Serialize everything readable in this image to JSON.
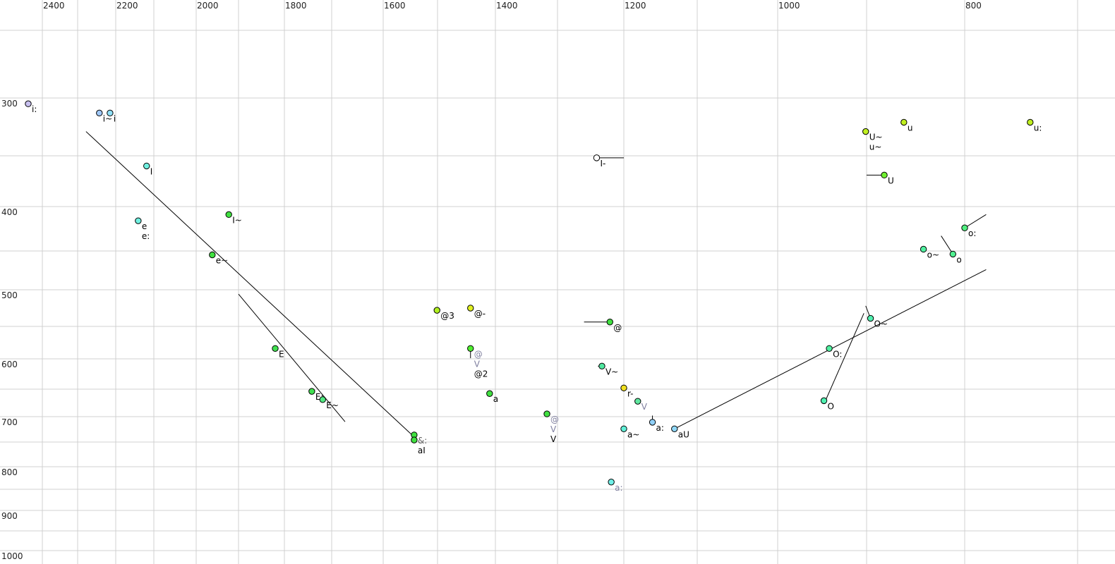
{
  "chart_data": {
    "type": "scatter",
    "title": "",
    "xlabel": "",
    "ylabel": "",
    "x_axis": {
      "reversed": true,
      "nonlinear": true,
      "labeled_ticks": [
        2400,
        2200,
        2000,
        1800,
        1600,
        1400,
        1200,
        1000,
        800
      ],
      "grid": [
        2400,
        2300,
        2200,
        2100,
        2000,
        1900,
        1800,
        1700,
        1600,
        1500,
        1400,
        1300,
        1200,
        1100,
        1000,
        900,
        800,
        700
      ],
      "position": "top"
    },
    "y_axis": {
      "reversed": true,
      "nonlinear": true,
      "labeled_ticks": [
        300,
        400,
        500,
        600,
        700,
        800,
        900,
        1000
      ],
      "grid": [
        250,
        300,
        350,
        400,
        450,
        500,
        550,
        600,
        650,
        700,
        750,
        800,
        850,
        900,
        950,
        1000
      ],
      "position": "left"
    },
    "grid": true,
    "points": [
      {
        "f2": 2440,
        "f1": 305,
        "color": "#c8c0f0",
        "labels": [
          {
            "text": "i:",
            "color": "#000000"
          }
        ]
      },
      {
        "f2": 2243,
        "f1": 313,
        "color": "#a0c8f8",
        "labels": [
          {
            "text": "i~",
            "color": "#000000"
          }
        ]
      },
      {
        "f2": 2215,
        "f1": 313,
        "color": "#90e0f8",
        "labels": [
          {
            "text": "i",
            "color": "#000000"
          }
        ]
      },
      {
        "f2": 2119,
        "f1": 360,
        "color": "#70f0e0",
        "labels": [
          {
            "text": "I",
            "color": "#000000"
          }
        ]
      },
      {
        "f2": 2141,
        "f1": 416,
        "color": "#70f0e0",
        "labels": [
          {
            "text": "e",
            "color": "#000000"
          },
          {
            "text": "e:",
            "color": "#000000"
          }
        ]
      },
      {
        "f2": 1923,
        "f1": 409,
        "color": "#40e040",
        "labels": [
          {
            "text": "I~",
            "color": "#000000"
          }
        ]
      },
      {
        "f2": 1962,
        "f1": 455,
        "color": "#40e040",
        "labels": [
          {
            "text": "e~",
            "color": "#000000"
          }
        ]
      },
      {
        "f2": 1820,
        "f1": 584,
        "color": "#40e050",
        "labels": [
          {
            "text": "E",
            "color": "#000000"
          }
        ]
      },
      {
        "f2": 1742,
        "f1": 654,
        "color": "#40e050",
        "labels": [
          {
            "text": "E:",
            "color": "#000000"
          }
        ]
      },
      {
        "f2": 1719,
        "f1": 669,
        "color": "#50e880",
        "labels": [
          {
            "text": "E~",
            "color": "#000000"
          }
        ]
      },
      {
        "f2": 1543,
        "f1": 736,
        "color": "#40e040",
        "labels": [
          {
            "text": "&:",
            "color": "#606060"
          }
        ]
      },
      {
        "f2": 1543,
        "f1": 746,
        "color": "#40e040",
        "labels": [
          {
            "text": "aI",
            "color": "#000000"
          }
        ]
      },
      {
        "f2": 1501,
        "f1": 528,
        "color": "#b0f020",
        "labels": [
          {
            "text": "@3",
            "color": "#000000"
          }
        ]
      },
      {
        "f2": 1443,
        "f1": 525,
        "color": "#e0f020",
        "labels": [
          {
            "text": "@-",
            "color": "#000000"
          }
        ]
      },
      {
        "f2": 1443,
        "f1": 584,
        "color": "#50f030",
        "labels": [
          {
            "text": "@",
            "color": "#8080a0"
          },
          {
            "text": "V",
            "color": "#8080a0"
          },
          {
            "text": "@2",
            "color": "#000000"
          }
        ]
      },
      {
        "f2": 1410,
        "f1": 658,
        "color": "#40e040",
        "labels": [
          {
            "text": "a",
            "color": "#000000"
          }
        ]
      },
      {
        "f2": 1317,
        "f1": 695,
        "color": "#40e040",
        "labels": [
          {
            "text": "@",
            "color": "#8080a0"
          },
          {
            "text": "V",
            "color": "#8080a0"
          },
          {
            "text": "V",
            "color": "#000000"
          }
        ]
      },
      {
        "f2": 1241,
        "f1": 352,
        "color": "#ffffff",
        "labels": [
          {
            "text": "I-",
            "color": "#000000"
          }
        ]
      },
      {
        "f2": 1221,
        "f1": 544,
        "color": "#40e040",
        "labels": [
          {
            "text": "@",
            "color": "#000000"
          }
        ]
      },
      {
        "f2": 1233,
        "f1": 612,
        "color": "#50e8a0",
        "labels": [
          {
            "text": "V~",
            "color": "#000000"
          }
        ]
      },
      {
        "f2": 1200,
        "f1": 648,
        "color": "#f0e020",
        "labels": [
          {
            "text": "r-",
            "color": "#000000"
          }
        ]
      },
      {
        "f2": 1181,
        "f1": 672,
        "color": "#60e8a0",
        "labels": [
          {
            "text": "V",
            "color": "#8080a0"
          }
        ],
        "no_outline": true
      },
      {
        "f2": 1200,
        "f1": 724,
        "color": "#60f0d8",
        "labels": [
          {
            "text": "a~",
            "color": "#000000"
          }
        ]
      },
      {
        "f2": 1161,
        "f1": 711,
        "color": "#90d0f8",
        "labels": [
          {
            "text": "a:",
            "color": "#000000"
          }
        ]
      },
      {
        "f2": 1131,
        "f1": 724,
        "color": "#90d8f8",
        "labels": [
          {
            "text": "aU",
            "color": "#000000"
          }
        ]
      },
      {
        "f2": 1219,
        "f1": 834,
        "color": "#70f0e8",
        "labels": [
          {
            "text": "a:",
            "color": "#8080a0"
          }
        ],
        "no_outline": true
      },
      {
        "f2": 901,
        "f1": 329,
        "color": "#c0f020",
        "labels": [
          {
            "text": "U~",
            "color": "#000000"
          },
          {
            "text": "u~",
            "color": "#000000"
          }
        ]
      },
      {
        "f2": 862,
        "f1": 321,
        "color": "#c0f020",
        "labels": [
          {
            "text": "u",
            "color": "#000000"
          }
        ]
      },
      {
        "f2": 742,
        "f1": 321,
        "color": "#c0f020",
        "labels": [
          {
            "text": "u:",
            "color": "#000000"
          }
        ]
      },
      {
        "f2": 882,
        "f1": 369,
        "color": "#70f030",
        "labels": [
          {
            "text": "U",
            "color": "#000000"
          }
        ]
      },
      {
        "f2": 800,
        "f1": 424,
        "color": "#50f080",
        "labels": [
          {
            "text": "o:",
            "color": "#000000"
          }
        ]
      },
      {
        "f2": 842,
        "f1": 448,
        "color": "#50f0a0",
        "labels": [
          {
            "text": "o~",
            "color": "#000000"
          }
        ]
      },
      {
        "f2": 812,
        "f1": 454,
        "color": "#50f090",
        "labels": [
          {
            "text": "o",
            "color": "#000000"
          }
        ]
      },
      {
        "f2": 896,
        "f1": 539,
        "color": "#50f0b0",
        "labels": [
          {
            "text": "O~",
            "color": "#000000"
          }
        ]
      },
      {
        "f2": 942,
        "f1": 584,
        "color": "#50f0a0",
        "labels": [
          {
            "text": "O:",
            "color": "#000000"
          }
        ]
      },
      {
        "f2": 948,
        "f1": 671,
        "color": "#50f0b0",
        "labels": [
          {
            "text": "O",
            "color": "#000000"
          }
        ]
      }
    ],
    "lines": [
      [
        [
          2278,
          329
        ],
        [
          1543,
          740
        ]
      ],
      [
        [
          1900,
          506
        ],
        [
          1674,
          710
        ]
      ],
      [
        [
          1131,
          724
        ],
        [
          781,
          474
        ]
      ],
      [
        [
          946,
          670
        ],
        [
          903,
          532
        ]
      ],
      [
        [
          901,
          522
        ],
        [
          896,
          539
        ]
      ],
      [
        [
          824,
          433
        ],
        [
          812,
          454
        ]
      ],
      [
        [
          800,
          424
        ],
        [
          781,
          409
        ]
      ],
      [
        [
          900,
          369
        ],
        [
          882,
          369
        ]
      ],
      [
        [
          1241,
          352
        ],
        [
          1200,
          352
        ]
      ],
      [
        [
          1260,
          544
        ],
        [
          1221,
          544
        ]
      ],
      [
        [
          1239,
          612
        ],
        [
          1233,
          612
        ]
      ],
      [
        [
          1200,
          644
        ],
        [
          1200,
          654
        ]
      ],
      [
        [
          1161,
          698
        ],
        [
          1161,
          711
        ]
      ],
      [
        [
          1443,
          584
        ],
        [
          1443,
          599
        ]
      ]
    ]
  }
}
